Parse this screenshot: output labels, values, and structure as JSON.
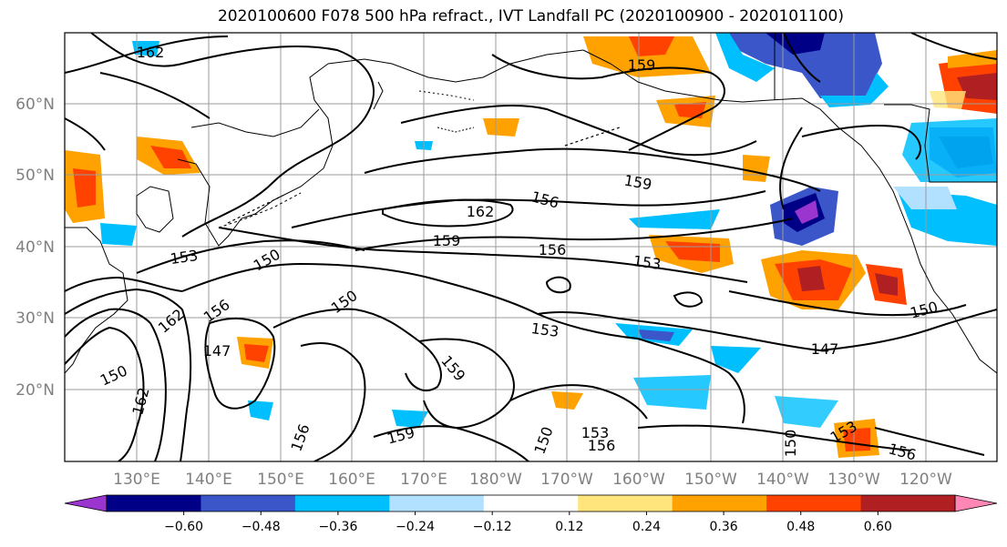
{
  "title": "2020100600 F078 500 hPa refract., IVT Landfall PC (2020100900 - 2020101100)",
  "latitude_labels": [
    "60°N",
    "50°N",
    "40°N",
    "30°N",
    "20°N"
  ],
  "longitude_labels": [
    "130°E",
    "140°E",
    "150°E",
    "160°E",
    "170°E",
    "180°W",
    "170°W",
    "160°W",
    "150°W",
    "140°W",
    "130°W",
    "120°W"
  ],
  "contour_labels": [
    "162",
    "159",
    "159",
    "156",
    "162",
    "159",
    "156",
    "153",
    "153",
    "150",
    "150",
    "156",
    "162",
    "147",
    "150",
    "162",
    "153",
    "159",
    "159",
    "156",
    "153",
    "156",
    "150",
    "150",
    "147",
    "150",
    "153",
    "156"
  ],
  "colorbar": {
    "tick_labels": [
      "−0.60",
      "−0.48",
      "−0.36",
      "−0.24",
      "−0.12",
      "0.12",
      "0.24",
      "0.36",
      "0.48",
      "0.60"
    ],
    "colors": [
      "#9a35d0",
      "#000087",
      "#3a56c9",
      "#00bfff",
      "#b2e1ff",
      "#ffffff",
      "#ffe57c",
      "#ffa200",
      "#ff4200",
      "#b01f22",
      "#ff86b5"
    ]
  }
}
